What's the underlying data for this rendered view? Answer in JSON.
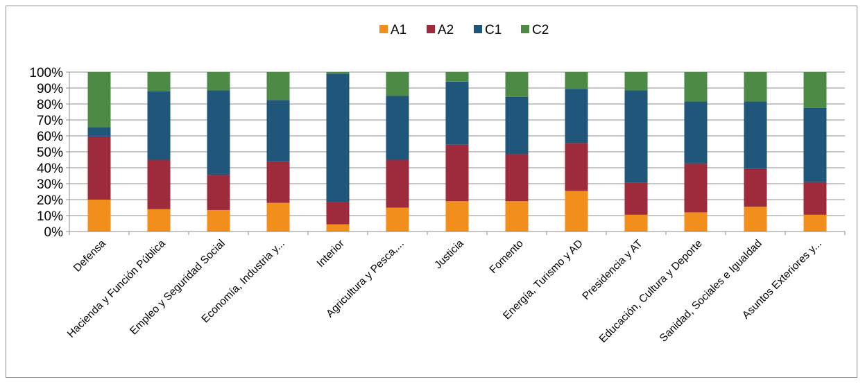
{
  "chart_data": {
    "type": "bar",
    "stacked": true,
    "percent_stacked": true,
    "categories": [
      "Defensa",
      "Hacienda y Función Pública",
      "Empleo y Seguridad Social",
      "Economía, Industria y...",
      "Interior",
      "Agricultura y Pesca,...",
      "Justicia",
      "Fomento",
      "Energía, Turismo y AD",
      "Presidencia  y AT",
      "Educación, Cultura y Deporte",
      "Sanidad, Sociales e Igualdad",
      "Asuntos Exteriores y..."
    ],
    "series": [
      {
        "name": "A1",
        "color": "#f28e1c",
        "values": [
          20,
          14,
          13.5,
          18,
          4.5,
          15,
          19,
          19,
          25.5,
          10.5,
          12,
          15.5,
          10.5
        ]
      },
      {
        "name": "A2",
        "color": "#9e2b3c",
        "values": [
          39.5,
          31,
          22,
          26,
          14,
          30,
          35.5,
          29.5,
          30,
          20,
          30.5,
          24,
          20.5
        ]
      },
      {
        "name": "C1",
        "color": "#1f567a",
        "values": [
          6,
          43,
          53,
          38.5,
          80.5,
          40,
          39.5,
          36,
          34,
          58,
          39,
          42,
          46.5
        ]
      },
      {
        "name": "C2",
        "color": "#4c8a45",
        "values": [
          34.5,
          12,
          11.5,
          17.5,
          1,
          15,
          6,
          15.5,
          10.5,
          11.5,
          18.5,
          18.5,
          22.5
        ]
      }
    ],
    "yticks": [
      "0%",
      "10%",
      "20%",
      "30%",
      "40%",
      "50%",
      "60%",
      "70%",
      "80%",
      "90%",
      "100%"
    ],
    "ylim": [
      0,
      100
    ],
    "grid": true,
    "legend_position": "top-center"
  }
}
